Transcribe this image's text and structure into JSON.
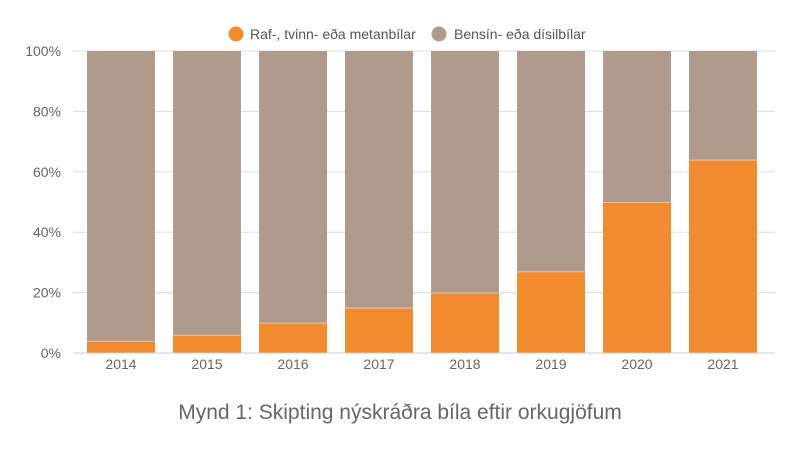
{
  "caption": "Mynd 1: Skipting nýskráðra bíla eftir orkugjöfum",
  "colors": {
    "electric": "#f28b30",
    "fossil": "#b09a8b",
    "grid": "#dddddd",
    "text": "#666666"
  },
  "chart_data": {
    "type": "bar",
    "stacked": true,
    "normalized": true,
    "categories": [
      "2014",
      "2015",
      "2016",
      "2017",
      "2018",
      "2019",
      "2020",
      "2021"
    ],
    "series": [
      {
        "name": "Raf-, tvinn- eða metanbílar",
        "values": [
          4,
          6,
          10,
          15,
          20,
          27,
          50,
          64
        ],
        "color": "#f28b30"
      },
      {
        "name": "Bensín- eða dísilbílar",
        "values": [
          96,
          94,
          90,
          85,
          80,
          73,
          50,
          36
        ],
        "color": "#b09a8b"
      }
    ],
    "ylim": [
      0,
      100
    ],
    "yticks": [
      "0%",
      "20%",
      "40%",
      "60%",
      "80%",
      "100%"
    ],
    "grid": true,
    "legend_position": "top-center"
  }
}
